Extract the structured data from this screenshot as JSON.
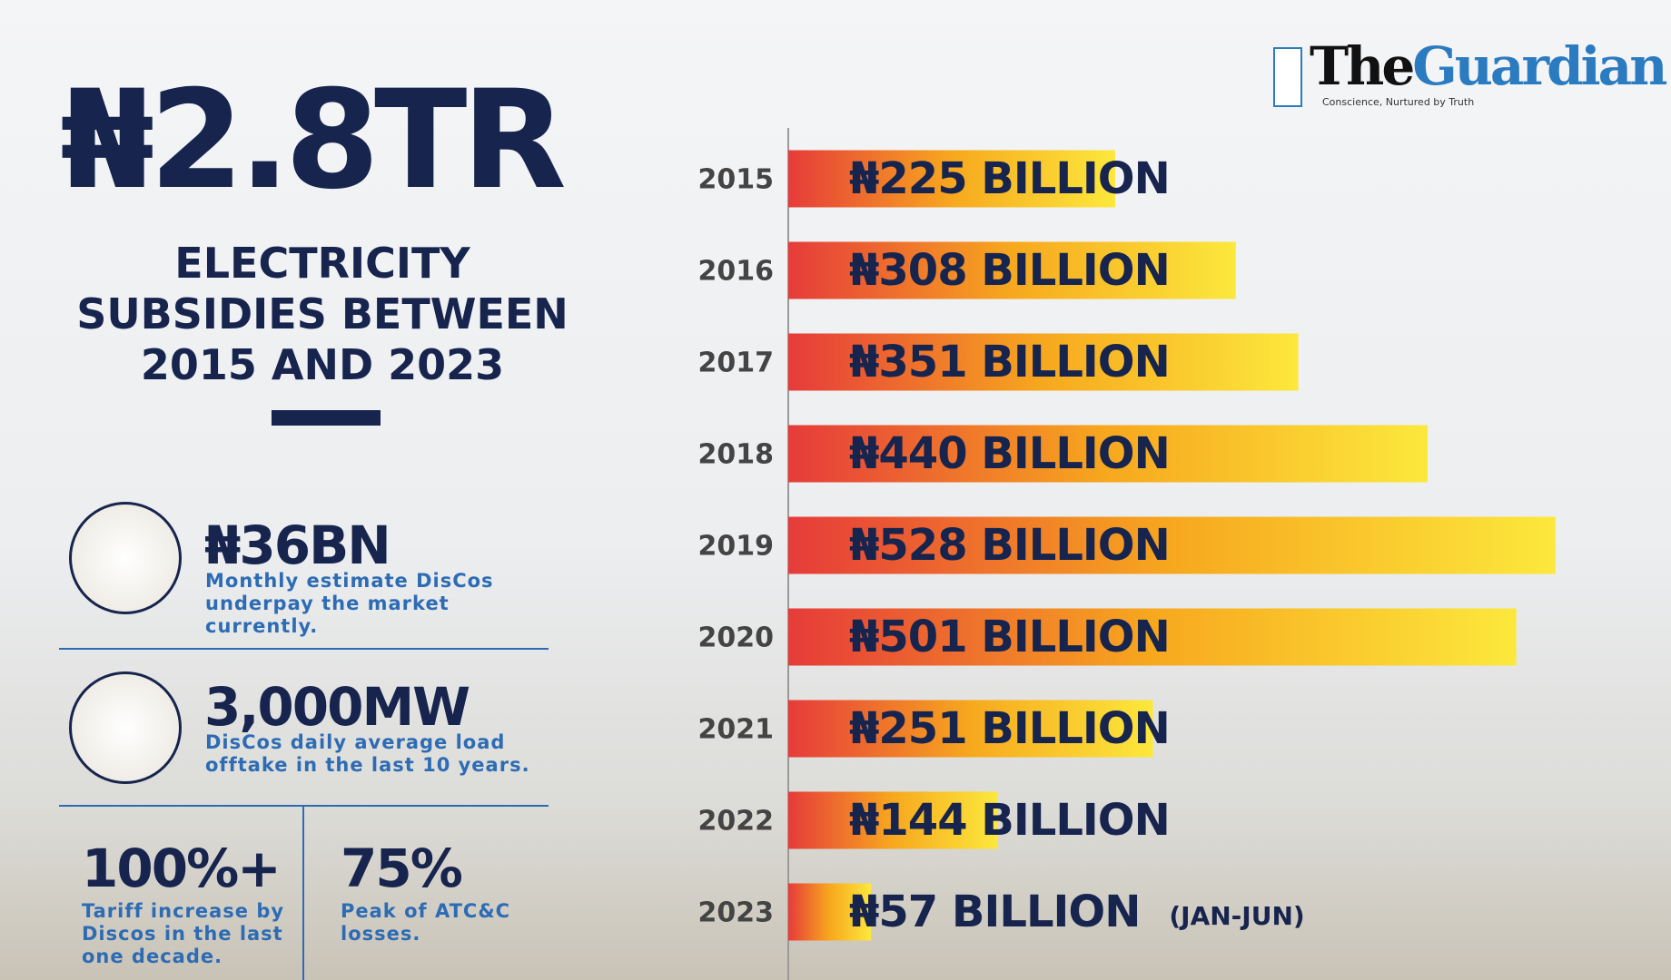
{
  "logo": {
    "name_first": "The",
    "name_second": "Guardian",
    "tagline": "Conscience, Nurtured by Truth"
  },
  "headline": {
    "amount": "₦2.8TR",
    "subtitle_lines": [
      "ELECTRICITY",
      "SUBSIDIES BETWEEN",
      "2015 AND 2023"
    ]
  },
  "stats": [
    {
      "value": "₦36BN",
      "description": "Monthly estimate DisCos underpay the market currently."
    },
    {
      "value": "3,000MW",
      "description": "DisCos daily average load offtake in the last 10 years."
    },
    {
      "value": "100%+",
      "description": "Tariff increase by Discos in the last one decade."
    },
    {
      "value": "75%",
      "description": "Peak of ATC&C losses."
    }
  ],
  "chart_data": {
    "type": "bar",
    "orientation": "horizontal",
    "categories": [
      "2015",
      "2016",
      "2017",
      "2018",
      "2019",
      "2020",
      "2021",
      "2022",
      "2023"
    ],
    "values": [
      225,
      308,
      351,
      440,
      528,
      501,
      251,
      144,
      57
    ],
    "value_labels": [
      "₦225 BILLION",
      "₦308 BILLION",
      "₦351 BILLION",
      "₦440 BILLION",
      "₦528 BILLION",
      "₦501 BILLION",
      "₦251 BILLION",
      "₦144 BILLION",
      "₦57 BILLION"
    ],
    "gradient": [
      "#e63b3a",
      "#f7a81e",
      "#fce83c"
    ],
    "annotation": "(JAN-JUN)"
  }
}
